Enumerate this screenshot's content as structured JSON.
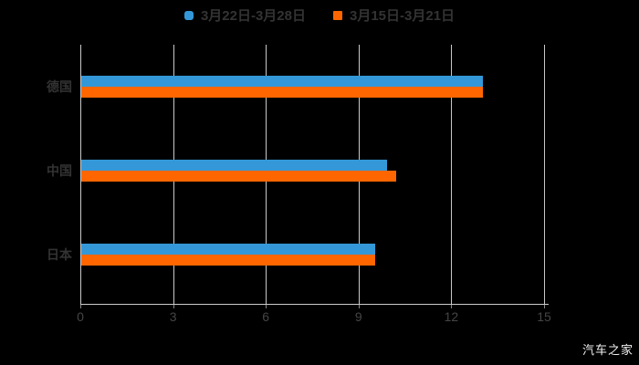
{
  "legend": {
    "items": [
      {
        "label": "3月22日-3月28日",
        "color": "#3498d8",
        "marker": "rounded-square"
      },
      {
        "label": "3月15日-3月21日",
        "color": "#ff6600",
        "marker": "square"
      }
    ],
    "text_color": "#333333"
  },
  "chart_data": {
    "type": "bar",
    "orientation": "horizontal",
    "title": "",
    "categories": [
      "德国",
      "中国",
      "日本"
    ],
    "series": [
      {
        "name": "3月22日-3月28日",
        "color": "#3498d8",
        "values": [
          13.0,
          9.9,
          9.5
        ]
      },
      {
        "name": "3月15日-3月21日",
        "color": "#ff6600",
        "values": [
          13.0,
          10.2,
          9.5
        ]
      }
    ],
    "xlim": [
      0,
      15
    ],
    "xticks": [
      0,
      3,
      6,
      9,
      12,
      15
    ],
    "grid": true,
    "legend_position": "top-center",
    "background_color": "#000000",
    "gridline_color": "#c9c9c9",
    "axis_color": "#cccccc",
    "tick_color": "#888888",
    "tick_label_color": "#454545",
    "category_label_color": "#333333"
  },
  "watermark": {
    "text": "汽车之家",
    "color": "#f2f2f2"
  }
}
